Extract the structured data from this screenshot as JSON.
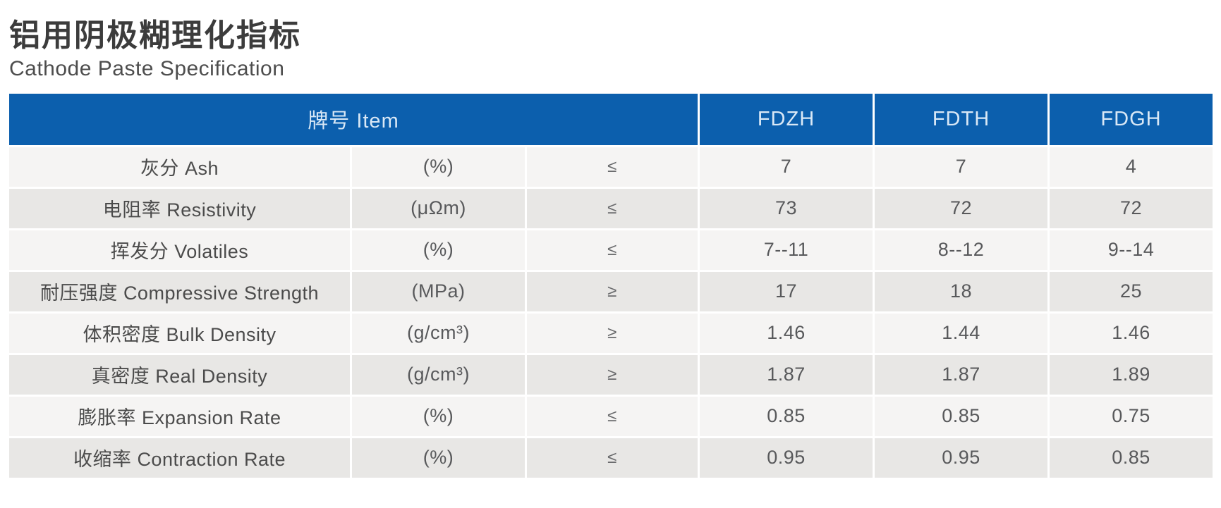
{
  "page": {
    "title": "铝用阴极糊理化指标",
    "subtitle": "Cathode Paste Specification"
  },
  "table": {
    "header": {
      "item_label": "牌号 Item",
      "columns": [
        "FDZH",
        "FDTH",
        "FDGH"
      ]
    },
    "rows": [
      {
        "name": "灰分 Ash",
        "unit": "(%)",
        "comparator": "≤",
        "values": [
          "7",
          "7",
          "4"
        ]
      },
      {
        "name": "电阻率 Resistivity",
        "unit": "(μΩm)",
        "comparator": "≤",
        "values": [
          "73",
          "72",
          "72"
        ]
      },
      {
        "name": "挥发分 Volatiles",
        "unit": "(%)",
        "comparator": "≤",
        "values": [
          "7--11",
          "8--12",
          "9--14"
        ]
      },
      {
        "name": "耐压强度 Compressive Strength",
        "unit": "(MPa)",
        "comparator": "≥",
        "values": [
          "17",
          "18",
          "25"
        ]
      },
      {
        "name": "体积密度 Bulk Density",
        "unit": "(g/cm³)",
        "comparator": "≥",
        "values": [
          "1.46",
          "1.44",
          "1.46"
        ]
      },
      {
        "name": "真密度 Real Density",
        "unit": "(g/cm³)",
        "comparator": "≥",
        "values": [
          "1.87",
          "1.87",
          "1.89"
        ]
      },
      {
        "name": "膨胀率 Expansion Rate",
        "unit": "(%)",
        "comparator": "≤",
        "values": [
          "0.85",
          "0.85",
          "0.75"
        ]
      },
      {
        "name": "收缩率 Contraction Rate",
        "unit": "(%)",
        "comparator": "≤",
        "values": [
          "0.95",
          "0.95",
          "0.85"
        ]
      }
    ],
    "colors": {
      "header_bg": "#0c5fad",
      "header_text": "#d9e8f6",
      "row_light": "#f5f4f3",
      "row_dark": "#e8e7e5",
      "text": "#58595b"
    }
  }
}
